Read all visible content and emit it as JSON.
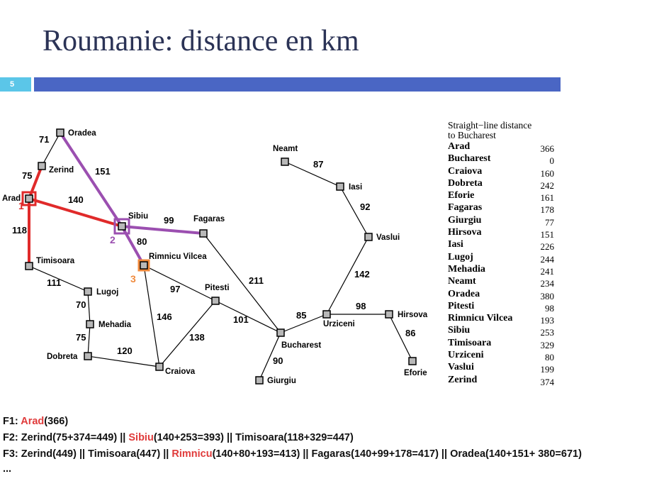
{
  "slide": {
    "title": "Roumanie: distance en km",
    "number": "5"
  },
  "map": {
    "cities": {
      "oradea": "Oradea",
      "zerind": "Zerind",
      "arad": "Arad",
      "sibiu": "Sibiu",
      "fagaras": "Fagaras",
      "rimnicu": "Rimnicu Vilcea",
      "timisoara": "Timisoara",
      "lugoj": "Lugoj",
      "mehadia": "Mehadia",
      "dobreta": "Dobreta",
      "craiova": "Craiova",
      "pitesti": "Pitesti",
      "bucharest": "Bucharest",
      "giurgiu": "Giurgiu",
      "urziceni": "Urziceni",
      "hirsova": "Hirsova",
      "eforie": "Eforie",
      "vaslui": "Vaslui",
      "iasi": "Iasi",
      "neamt": "Neamt"
    },
    "distances": {
      "oradea_zerind": "71",
      "zerind_arad": "75",
      "oradea_sibiu": "151",
      "arad_sibiu": "140",
      "arad_timisoara": "118",
      "sibiu_fagaras": "99",
      "sibiu_rimnicu": "80",
      "timisoara_lugoj": "111",
      "lugoj_mehadia": "70",
      "mehadia_dobreta": "75",
      "dobreta_craiova": "120",
      "rimnicu_craiova": "146",
      "rimnicu_pitesti": "97",
      "craiova_pitesti": "138",
      "pitesti_bucharest": "101",
      "fagaras_bucharest": "211",
      "bucharest_giurgiu": "90",
      "bucharest_urziceni": "85",
      "urziceni_hirsova": "98",
      "hirsova_eforie": "86",
      "urziceni_vaslui": "142",
      "vaslui_iasi": "92",
      "iasi_neamt": "87"
    },
    "step_labels": {
      "s1": "1",
      "s2": "2",
      "s3": "3"
    },
    "colors": {
      "step1": "#e02a2a",
      "step2": "#9b4fb0",
      "step3": "#f08a3c",
      "node": "#b8b8b8"
    }
  },
  "sld_table": {
    "header_line1": "Straight−line distance",
    "header_line2": "to Bucharest",
    "rows": [
      {
        "city": "Arad",
        "value": "366"
      },
      {
        "city": "Bucharest",
        "value": "0"
      },
      {
        "city": "Craiova",
        "value": "160"
      },
      {
        "city": "Dobreta",
        "value": "242"
      },
      {
        "city": "Eforie",
        "value": "161"
      },
      {
        "city": "Fagaras",
        "value": "178"
      },
      {
        "city": "Giurgiu",
        "value": "77"
      },
      {
        "city": "Hirsova",
        "value": "151"
      },
      {
        "city": "Iasi",
        "value": "226"
      },
      {
        "city": "Lugoj",
        "value": "244"
      },
      {
        "city": "Mehadia",
        "value": "241"
      },
      {
        "city": "Neamt",
        "value": "234"
      },
      {
        "city": "Oradea",
        "value": "380"
      },
      {
        "city": "Pitesti",
        "value": "98"
      },
      {
        "city": "Rimnicu Vilcea",
        "value": "193"
      },
      {
        "city": "Sibiu",
        "value": "253"
      },
      {
        "city": "Timisoara",
        "value": "329"
      },
      {
        "city": "Urziceni",
        "value": "80"
      },
      {
        "city": "Vaslui",
        "value": "199"
      },
      {
        "city": "Zerind",
        "value": "374"
      }
    ]
  },
  "frontier": {
    "f1": {
      "prefix": "F1: ",
      "hl": "Arad",
      "rest": "(366)"
    },
    "f2": {
      "prefix": "F2: Zerind(75+374=449) || ",
      "hl": "Sibiu",
      "rest": "(140+253=393) || Timisoara(118+329=447)"
    },
    "f3": {
      "prefix": "F3: Zerind(449) || Timisoara(447) || ",
      "hl": "Rimnicu",
      "rest": "(140+80+193=413) || Fagaras(140+99+178=417) || Oradea(140+151+ 380=671)"
    },
    "ellipsis": "..."
  }
}
